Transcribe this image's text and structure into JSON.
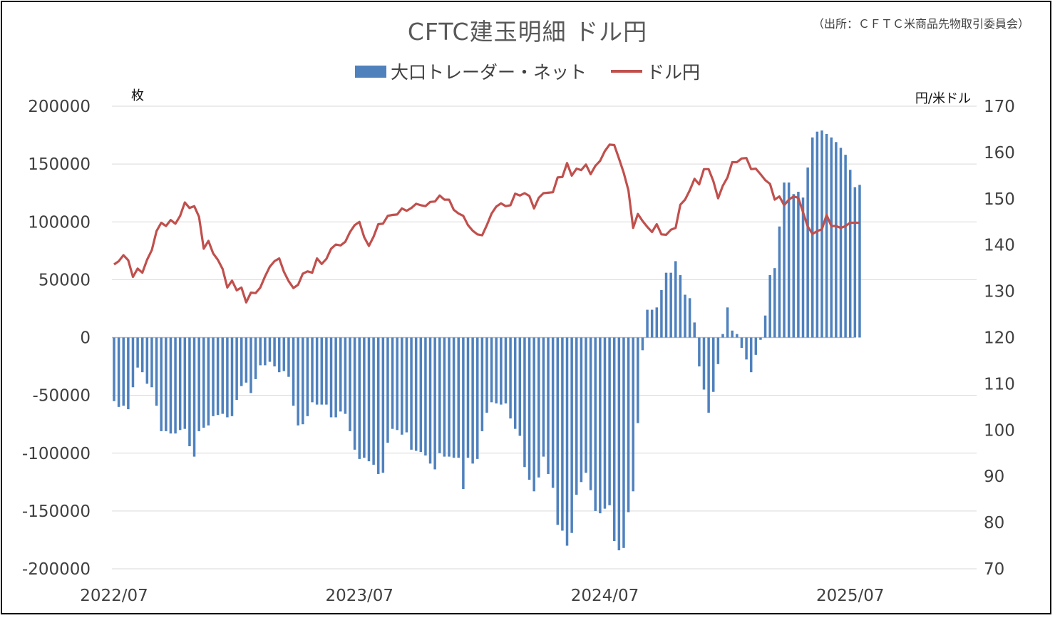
{
  "title": "CFTC建玉明細 ドル円",
  "source": "（出所：ＣＦＴＣ米商品先物取引委員会）",
  "legend": {
    "bar_label": "大口トレーダー・ネット",
    "line_label": "ドル円"
  },
  "units": {
    "left": "枚",
    "right": "円/米ドル"
  },
  "colors": {
    "bar": "#4f81bd",
    "line": "#c0504d",
    "grid": "#d9d9d9"
  },
  "chart_data": {
    "type": "bar+line",
    "title": "CFTC建玉明細 ドル円",
    "x_tick_labels": [
      "2022/07",
      "2023/07",
      "2024/07",
      "2025/07"
    ],
    "x_start": "2022/07",
    "period": "weekly",
    "y_left": {
      "label": "枚",
      "range": [
        -200000,
        200000
      ],
      "ticks": [
        200000,
        150000,
        100000,
        50000,
        0,
        -50000,
        -100000,
        -150000,
        -200000
      ]
    },
    "y_right": {
      "label": "円/米ドル",
      "range": [
        70,
        170
      ],
      "ticks": [
        170,
        160,
        150,
        140,
        130,
        120,
        110,
        100,
        90,
        80,
        70
      ]
    },
    "grid": true,
    "legend_position": "top-center",
    "series": [
      {
        "name": "大口トレーダー・ネット",
        "axis": "left",
        "kind": "bar",
        "values": [
          -55000,
          -60000,
          -59000,
          -62000,
          -43000,
          -26000,
          -30000,
          -40000,
          -43000,
          -59000,
          -81000,
          -81000,
          -83000,
          -83000,
          -80000,
          -79000,
          -94000,
          -103000,
          -81000,
          -78000,
          -76000,
          -68000,
          -67000,
          -66000,
          -69000,
          -68000,
          -54000,
          -42000,
          -39000,
          -48000,
          -36000,
          -24000,
          -24000,
          -21000,
          -25000,
          -30000,
          -29000,
          -34000,
          -59000,
          -76000,
          -75000,
          -68000,
          -56000,
          -58000,
          -58000,
          -58000,
          -69000,
          -69000,
          -64000,
          -66000,
          -81000,
          -97000,
          -105000,
          -104000,
          -107000,
          -110000,
          -118000,
          -117000,
          -91000,
          -79000,
          -80000,
          -84000,
          -82000,
          -97000,
          -98000,
          -99000,
          -102000,
          -109000,
          -114000,
          -100000,
          -103000,
          -103000,
          -104000,
          -104000,
          -131000,
          -104000,
          -109000,
          -105000,
          -81000,
          -65000,
          -56000,
          -57000,
          -58000,
          -57000,
          -70000,
          -79000,
          -85000,
          -112000,
          -123000,
          -133000,
          -121000,
          -103000,
          -118000,
          -130000,
          -162000,
          -167000,
          -180000,
          -169000,
          -136000,
          -125000,
          -117000,
          -132000,
          -150000,
          -152000,
          -148000,
          -145000,
          -176000,
          -184000,
          -182000,
          -151000,
          -133000,
          -74000,
          -11000,
          24000,
          24000,
          26000,
          41000,
          56000,
          56000,
          66000,
          54000,
          37000,
          34000,
          13000,
          -25000,
          -45000,
          -65000,
          -47000,
          -23000,
          3000,
          26000,
          6000,
          3000,
          -9000,
          -19000,
          -30000,
          -15000,
          -2000,
          19000,
          54000,
          60000,
          96000,
          134000,
          134000,
          124000,
          126000,
          121000,
          147000,
          173000,
          178000,
          179000,
          176000,
          173000,
          169000,
          164000,
          158000,
          145000,
          130000,
          132000
        ]
      },
      {
        "name": "ドル円",
        "axis": "right",
        "kind": "line",
        "values": [
          135.8,
          136.5,
          137.8,
          136.7,
          133.1,
          134.9,
          134.0,
          136.8,
          138.9,
          143.0,
          144.8,
          144.1,
          145.4,
          144.6,
          146.3,
          149.2,
          148.0,
          148.4,
          146.1,
          139.2,
          140.9,
          138.2,
          136.8,
          134.8,
          130.8,
          132.3,
          130.2,
          130.8,
          127.6,
          129.7,
          129.6,
          130.8,
          133.2,
          135.3,
          136.5,
          137.1,
          134.2,
          132.2,
          130.7,
          131.4,
          133.8,
          134.3,
          134.0,
          137.1,
          135.9,
          137.0,
          139.2,
          140.1,
          139.9,
          140.7,
          142.8,
          144.3,
          145.0,
          141.7,
          139.8,
          141.8,
          144.5,
          144.6,
          146.3,
          146.5,
          146.6,
          147.9,
          147.4,
          148.0,
          148.9,
          148.6,
          148.4,
          149.3,
          149.4,
          150.7,
          149.8,
          149.8,
          147.6,
          146.8,
          146.3,
          144.3,
          143.1,
          142.3,
          142.1,
          144.3,
          146.8,
          148.3,
          149.0,
          148.4,
          148.6,
          151.1,
          150.7,
          151.2,
          150.6,
          147.9,
          150.2,
          151.2,
          151.3,
          151.4,
          154.6,
          154.7,
          157.7,
          155.0,
          156.5,
          156.2,
          157.4,
          155.3,
          157.1,
          158.2,
          160.3,
          161.7,
          161.6,
          158.7,
          155.6,
          151.8,
          143.7,
          146.7,
          145.2,
          143.9,
          142.8,
          144.5,
          142.3,
          142.2,
          143.3,
          143.7,
          148.7,
          149.8,
          151.8,
          154.3,
          153.1,
          156.4,
          156.4,
          153.8,
          150.1,
          152.8,
          154.6,
          157.9,
          157.9,
          158.7,
          158.8,
          156.4,
          156.5,
          155.3,
          154.0,
          153.2,
          149.8,
          150.5,
          148.6,
          149.8,
          150.5,
          150.2,
          147.1,
          144.0,
          142.4,
          143.0,
          143.4,
          146.5,
          144.1,
          144.1,
          143.7,
          144.1,
          144.8,
          144.8,
          144.8
        ]
      }
    ]
  }
}
